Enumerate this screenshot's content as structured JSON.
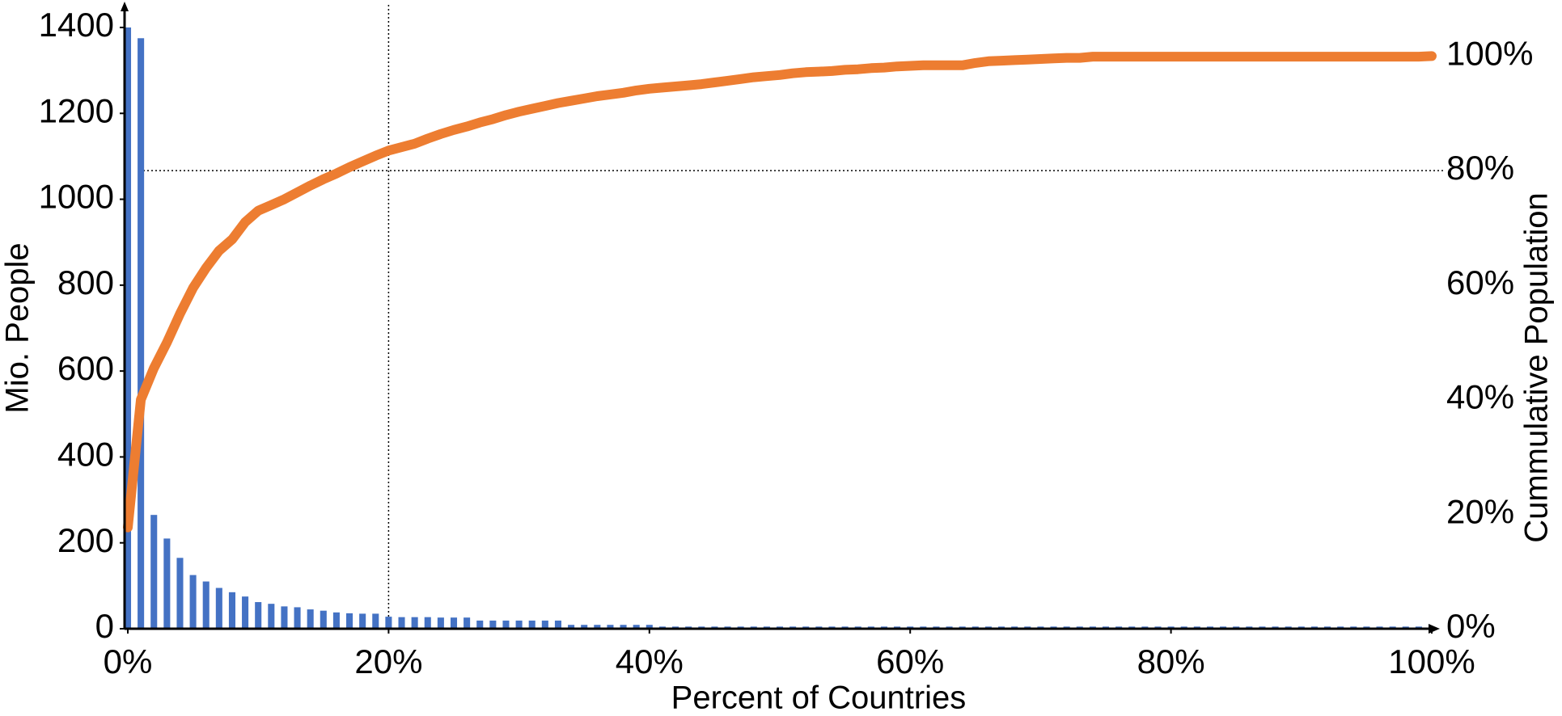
{
  "chart_data": {
    "type": "pareto",
    "x_label": "Percent of Countries",
    "y_label": "Mio. People",
    "y2_label": "Cummulative Population",
    "x": [
      0,
      1,
      2,
      3,
      4,
      5,
      6,
      7,
      8,
      9,
      10,
      11,
      12,
      13,
      14,
      15,
      16,
      17,
      18,
      19,
      20,
      21,
      22,
      23,
      24,
      25,
      26,
      27,
      28,
      29,
      30,
      31,
      32,
      33,
      34,
      35,
      36,
      37,
      38,
      39,
      40,
      41,
      42,
      43,
      44,
      45,
      46,
      47,
      48,
      49,
      50,
      51,
      52,
      53,
      54,
      55,
      56,
      57,
      58,
      59,
      60,
      61,
      62,
      63,
      64,
      65,
      66,
      67,
      68,
      69,
      70,
      71,
      72,
      73,
      74,
      75,
      76,
      77,
      78,
      79,
      80,
      81,
      82,
      83,
      84,
      85,
      86,
      87,
      88,
      89,
      90,
      91,
      92,
      93,
      94,
      95,
      96,
      97,
      98,
      99,
      100
    ],
    "series": [
      {
        "type": "bar",
        "color": "#4472c4",
        "values": [
          1400,
          1375,
          265,
          210,
          165,
          125,
          110,
          95,
          85,
          75,
          62,
          58,
          52,
          50,
          45,
          42,
          38,
          36,
          35,
          35,
          28,
          27,
          27,
          27,
          26,
          26,
          26,
          19,
          19,
          19,
          19,
          19,
          19,
          19,
          9,
          9,
          9,
          9,
          9,
          9,
          9,
          5,
          5,
          5,
          5,
          5,
          5,
          5,
          5,
          5,
          5,
          5,
          5,
          5,
          5,
          5,
          5,
          5,
          5,
          5,
          5,
          5,
          5,
          5,
          5,
          5,
          5,
          5,
          5,
          5,
          5,
          5,
          5,
          5,
          5,
          5,
          5,
          5,
          5,
          5,
          5,
          5,
          5,
          5,
          5,
          5,
          5,
          5,
          5,
          5,
          5,
          5,
          5,
          5,
          5,
          5,
          5,
          5,
          5,
          5,
          4
        ]
      },
      {
        "type": "line",
        "axis": "y2",
        "color": "#ed7d31",
        "values": [
          17.7,
          40,
          45.5,
          50,
          55,
          59.5,
          63,
          66,
          68,
          71,
          73,
          74,
          75,
          76.2,
          77.4,
          78.5,
          79.5,
          80.6,
          81.6,
          82.6,
          83.5,
          84.1,
          84.7,
          85.6,
          86.4,
          87.1,
          87.7,
          88.4,
          89,
          89.7,
          90.3,
          90.8,
          91.3,
          91.8,
          92.2,
          92.6,
          93,
          93.3,
          93.6,
          94,
          94.3,
          94.5,
          94.7,
          94.9,
          95.1,
          95.4,
          95.7,
          96,
          96.3,
          96.5,
          96.7,
          97,
          97.2,
          97.3,
          97.4,
          97.6,
          97.7,
          97.9,
          98,
          98.2,
          98.3,
          98.4,
          98.4,
          98.4,
          98.4,
          98.8,
          99.1,
          99.2,
          99.3,
          99.4,
          99.5,
          99.6,
          99.7,
          99.7,
          99.9,
          99.9,
          99.9,
          99.9,
          99.9,
          99.9,
          99.9,
          99.9,
          99.9,
          99.9,
          99.9,
          99.9,
          99.9,
          99.9,
          99.9,
          99.9,
          99.9,
          99.9,
          99.9,
          99.9,
          99.9,
          99.9,
          99.9,
          99.9,
          99.9,
          99.9,
          100
        ]
      }
    ],
    "xlim": [
      0,
      100
    ],
    "xticks": [
      {
        "value": 0,
        "label": "0%"
      },
      {
        "value": 20,
        "label": "20%"
      },
      {
        "value": 40,
        "label": "40%"
      },
      {
        "value": 60,
        "label": "60%"
      },
      {
        "value": 80,
        "label": "80%"
      },
      {
        "value": 100,
        "label": "100%"
      }
    ],
    "ylim": [
      0,
      1400
    ],
    "yticks": [
      0,
      200,
      400,
      600,
      800,
      1000,
      1200,
      1400
    ],
    "y2lim": [
      0,
      105
    ],
    "y2ticks": [
      {
        "value": 0,
        "label": "0%"
      },
      {
        "value": 20,
        "label": "20%"
      },
      {
        "value": 40,
        "label": "40%"
      },
      {
        "value": 60,
        "label": "60%"
      },
      {
        "value": 80,
        "label": "80%"
      },
      {
        "value": 100,
        "label": "100%"
      }
    ],
    "reference_x": 20,
    "reference_y2": 80
  }
}
